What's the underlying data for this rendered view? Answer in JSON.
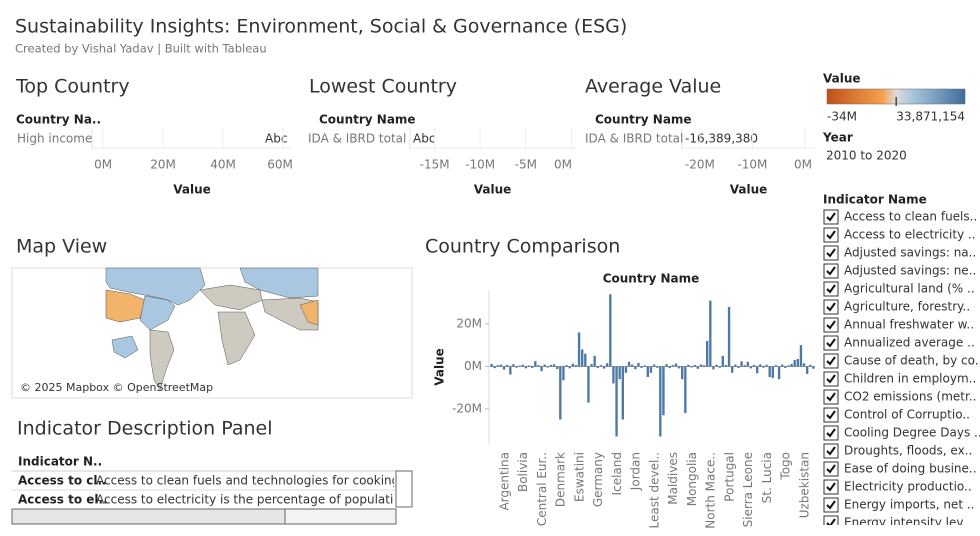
{
  "header": {
    "title": "Sustainability Insights: Environment, Social & Governance (ESG)",
    "subtitle": "Created by Vishal Yadav | Built with Tableau"
  },
  "chart_data": [
    {
      "type": "text",
      "title": "Top Country",
      "row_header": "Country Na..",
      "categories": [
        "High income"
      ],
      "mark_text": "Abc",
      "xlabel": "Value",
      "xlim": [
        -3700000,
        63000000
      ],
      "xticks": [
        {
          "value": 0,
          "label": "0M"
        },
        {
          "value": 20000000,
          "label": "20M"
        },
        {
          "value": 40000000,
          "label": "40M"
        },
        {
          "value": 60000000,
          "label": "60M"
        }
      ]
    },
    {
      "type": "text",
      "title": "Lowest Country",
      "row_header": "Country Name",
      "categories": [
        "IDA & IBRD total"
      ],
      "mark_text": "Abc",
      "xlabel": "Value",
      "xlim": [
        -17700000,
        400000
      ],
      "xticks": [
        {
          "value": -15000000,
          "label": "-15M"
        },
        {
          "value": -10000000,
          "label": "-10M"
        },
        {
          "value": -5000000,
          "label": "-5M"
        },
        {
          "value": 0,
          "label": "0M"
        }
      ]
    },
    {
      "type": "text",
      "title": "Average Value",
      "row_header": "Country Name",
      "categories": [
        "IDA & IBRD total"
      ],
      "values": [
        -16389380
      ],
      "value_labels": [
        "-16,389,380"
      ],
      "xlabel": "Value",
      "xlim": [
        -23400000,
        1900000
      ],
      "xticks": [
        {
          "value": -20000000,
          "label": "-20M"
        },
        {
          "value": -10000000,
          "label": "-10M"
        },
        {
          "value": 0,
          "label": "0M"
        }
      ]
    },
    {
      "type": "bar",
      "title": "Country Comparison",
      "header": "Country Name",
      "ylabel": "Value",
      "color": "#4e79a7",
      "ylim": [
        -37000000,
        36000000
      ],
      "yticks": [
        {
          "value": -20000000,
          "label": "-20M"
        },
        {
          "value": 0,
          "label": "0M"
        },
        {
          "value": 20000000,
          "label": "20M"
        }
      ],
      "categories": [
        null,
        null,
        null,
        "Argentina",
        null,
        null,
        null,
        null,
        null,
        "Bolivia",
        null,
        null,
        null,
        null,
        null,
        "Central Eur..",
        null,
        null,
        null,
        null,
        null,
        "Denmark",
        null,
        null,
        null,
        null,
        null,
        "Eswatini",
        null,
        null,
        null,
        null,
        null,
        "Germany",
        null,
        null,
        null,
        null,
        null,
        "Iceland",
        null,
        null,
        null,
        null,
        null,
        "Jordan",
        null,
        null,
        null,
        null,
        null,
        "Least devel..",
        null,
        null,
        null,
        null,
        null,
        "Maldives",
        null,
        null,
        null,
        null,
        null,
        "Mongolia",
        null,
        null,
        null,
        null,
        null,
        "North Mace..",
        null,
        null,
        null,
        null,
        null,
        "Portugal",
        null,
        null,
        null,
        null,
        null,
        "Sierra Leone",
        null,
        null,
        null,
        null,
        null,
        "St. Lucia",
        null,
        null,
        null,
        null,
        null,
        "Togo",
        null,
        null,
        null,
        null,
        null,
        "Uzbekistan",
        null,
        null,
        null,
        null
      ],
      "values": [
        1200000,
        -800000,
        600000,
        900000,
        -1500000,
        700000,
        -3800000,
        1100000,
        -600000,
        400000,
        800000,
        -900000,
        500000,
        -700000,
        2500000,
        600000,
        -2200000,
        900000,
        -500000,
        700000,
        1000000,
        -1200000,
        -25000000,
        -6500000,
        600000,
        -900000,
        1300000,
        700000,
        16000000,
        8000000,
        6000000,
        -17000000,
        1100000,
        5000000,
        -800000,
        600000,
        -1000000,
        1500000,
        34000000,
        -8000000,
        -33000000,
        -6000000,
        -25000000,
        -3000000,
        2200000,
        900000,
        -1300000,
        1600000,
        -700000,
        500000,
        -5000000,
        -3000000,
        900000,
        -600000,
        -33000000,
        -23000000,
        1100000,
        -800000,
        600000,
        1400000,
        -900000,
        -6000000,
        -22000000,
        800000,
        -500000,
        700000,
        -1100000,
        900000,
        600000,
        12000000,
        31000000,
        -1400000,
        800000,
        -600000,
        5000000,
        700000,
        28000000,
        -3000000,
        900000,
        -700000,
        2400000,
        600000,
        2200000,
        -900000,
        700000,
        -3200000,
        1000000,
        -600000,
        800000,
        -5000000,
        -5500000,
        600000,
        -6000000,
        900000,
        -700000,
        500000,
        1200000,
        3000000,
        3500000,
        10000000,
        1500000,
        -3500000,
        800000,
        -1100000
      ]
    }
  ],
  "map": {
    "title": "Map View",
    "credit": "© 2025 Mapbox © OpenStreetMap"
  },
  "legend": {
    "title": "Value",
    "min": {
      "value": -34000000,
      "label": "-34M"
    },
    "max": {
      "value": 33871154,
      "label": "33,871,154"
    }
  },
  "year_filter": {
    "title": "Year",
    "value": "2010 to 2020"
  },
  "indicator_filter": {
    "title": "Indicator Name",
    "items": [
      "Access to clean fuels..",
      "Access to electricity ..",
      "Adjusted savings: na..",
      "Adjusted savings: ne..",
      "Agricultural land (% ..",
      "Agriculture, forestry..",
      "Annual freshwater w..",
      "Annualized average ..",
      "Cause of death, by co..",
      "Children in employm..",
      "CO2 emissions (metr..",
      "Control of Corruptio..",
      "Cooling Degree Days ..",
      "Droughts, floods, ex..",
      "Ease of doing busine..",
      "Electricity productio..",
      "Energy imports, net ..",
      "Energy intensity lev.."
    ]
  },
  "description_panel": {
    "title": "Indicator Description Panel",
    "header": "Indicator N..",
    "rows": [
      [
        "Access to cl..",
        "Access to clean fuels and technologies for cooking is t"
      ],
      [
        "Access to el..",
        "Access to electricity is the percentage of population v"
      ]
    ]
  }
}
